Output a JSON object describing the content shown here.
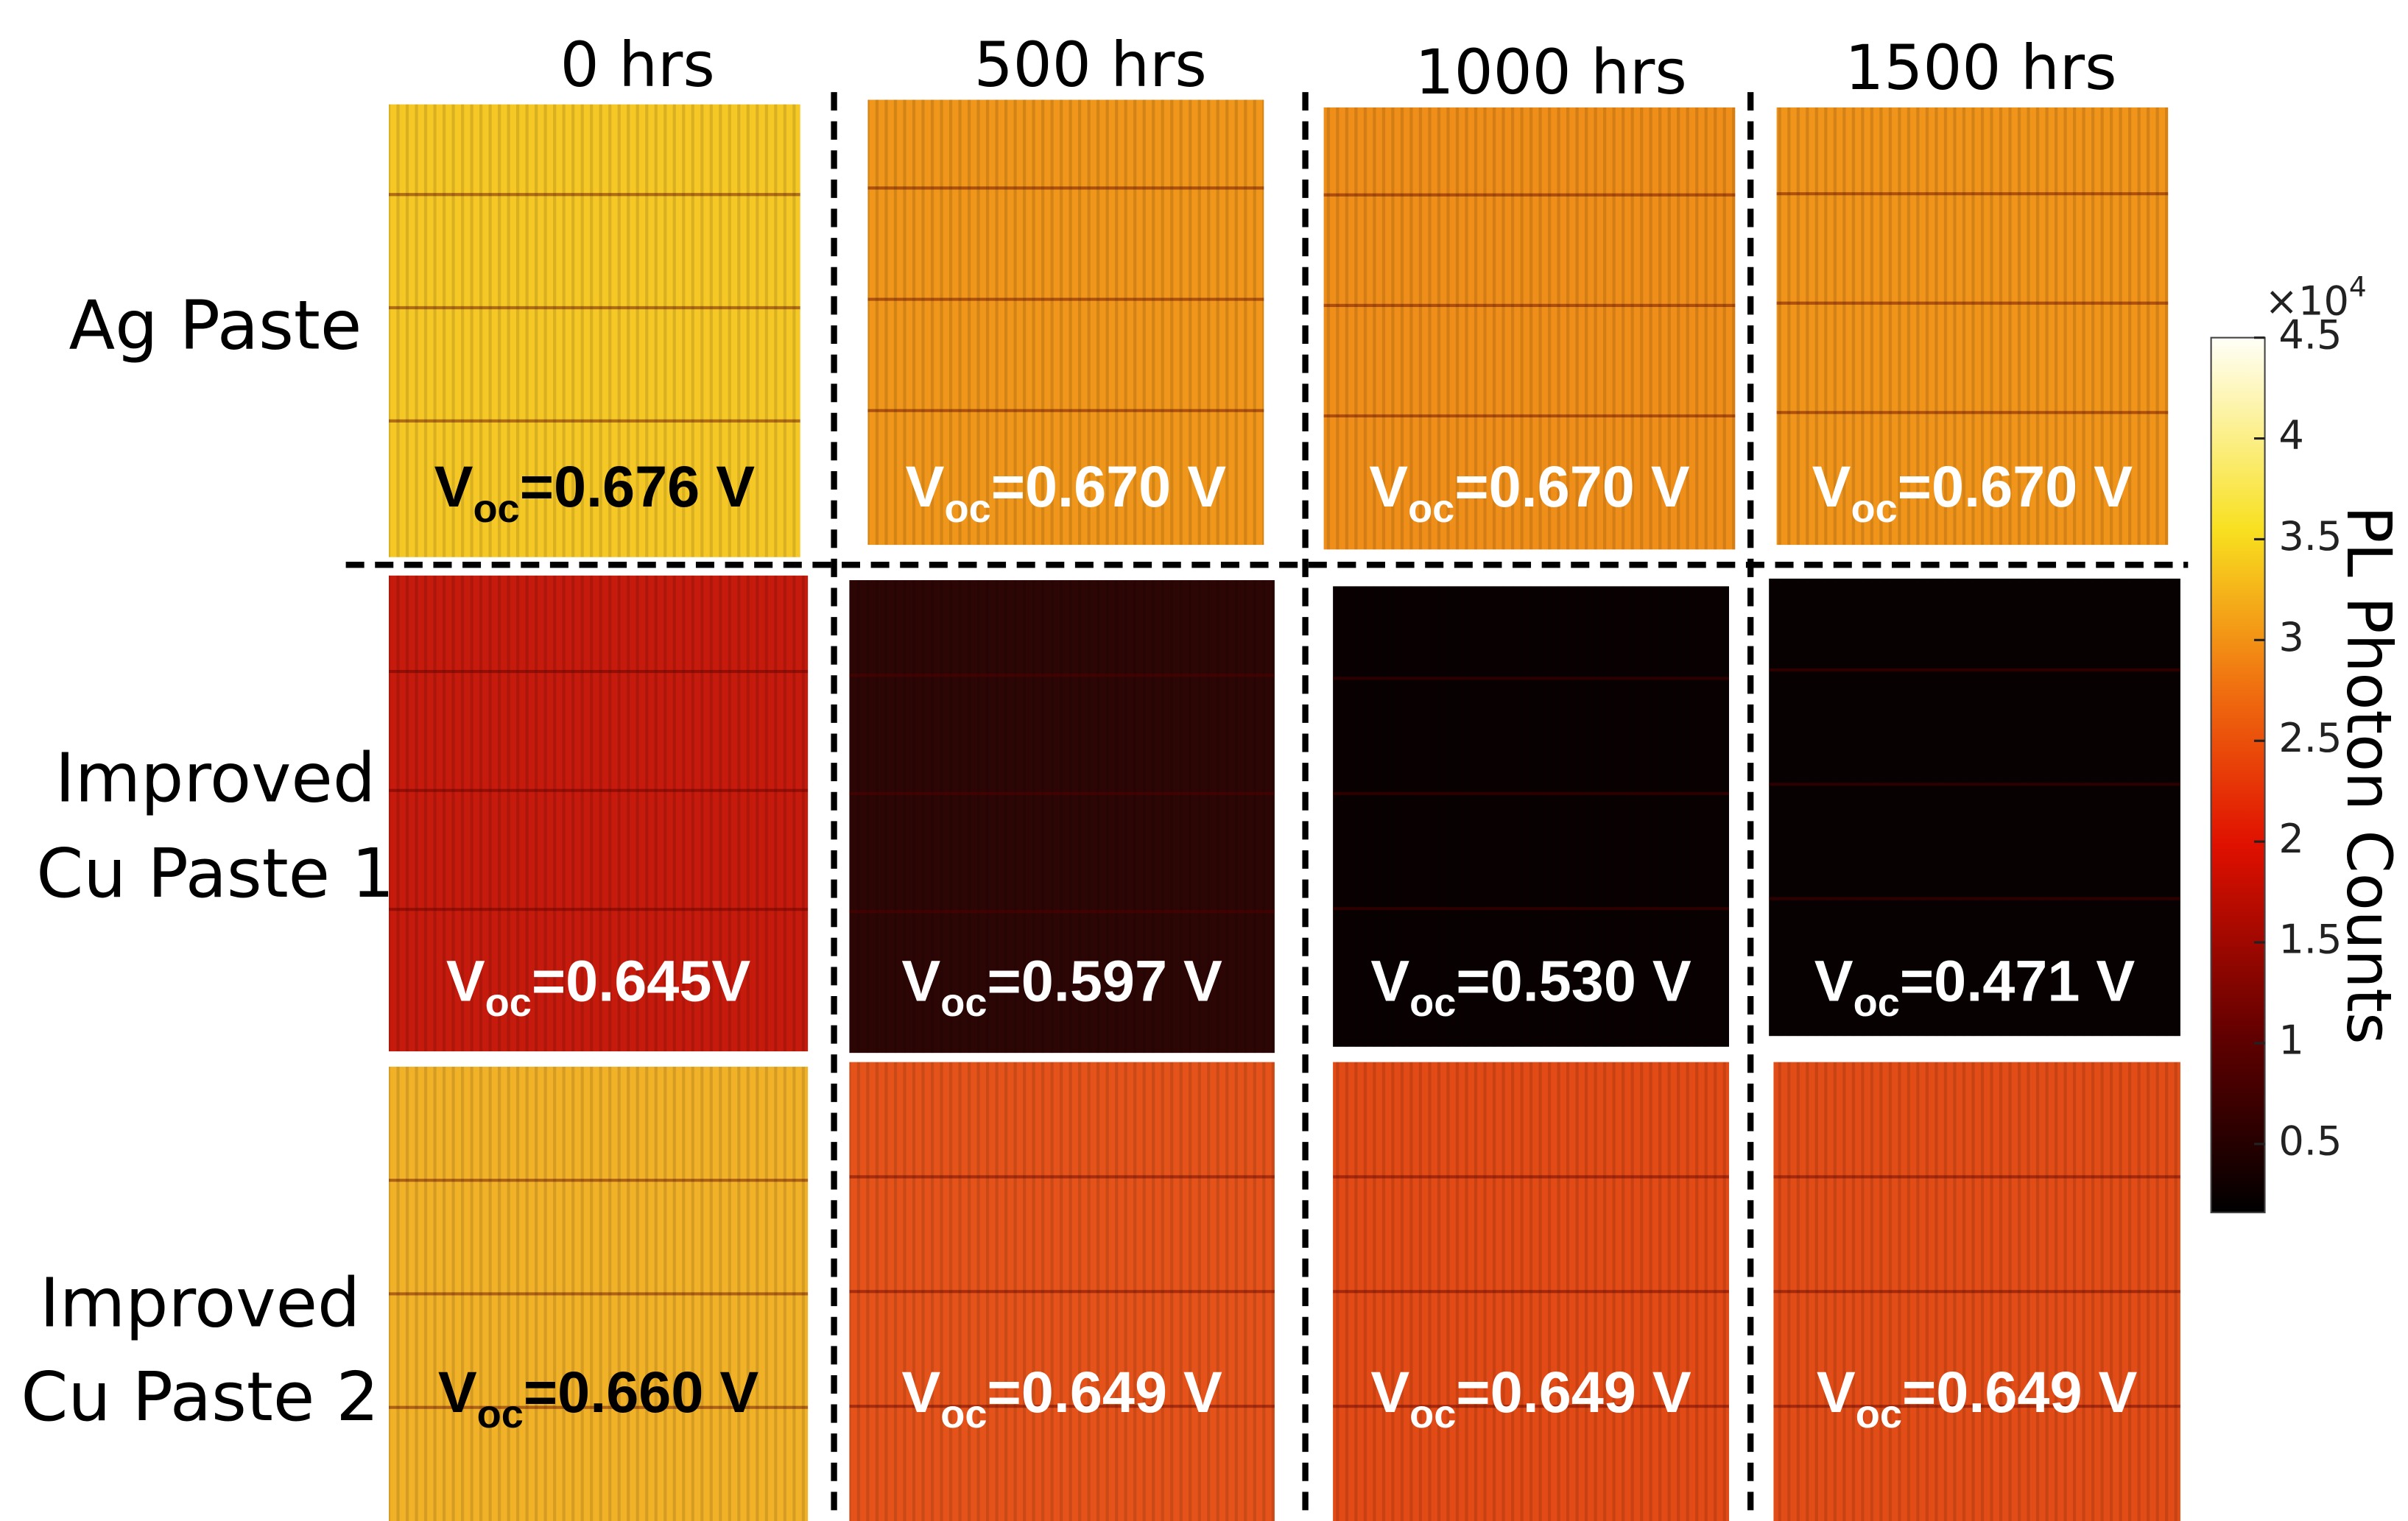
{
  "columns": [
    "0 hrs",
    "500 hrs",
    "1000 hrs",
    "1500 hrs"
  ],
  "rows": [
    {
      "label": [
        "Ag Paste"
      ],
      "cells": [
        {
          "symbol": "V",
          "subscript": "oc",
          "text": "=0.676 V"
        },
        {
          "symbol": "V",
          "subscript": "oc",
          "text": "=0.670 V"
        },
        {
          "symbol": "V",
          "subscript": "oc",
          "text": "=0.670 V"
        },
        {
          "symbol": "V",
          "subscript": "oc",
          "text": "=0.670 V"
        }
      ]
    },
    {
      "label": [
        "Improved",
        "Cu Paste 1"
      ],
      "cells": [
        {
          "symbol": "V",
          "subscript": "oc",
          "text": "=0.645V"
        },
        {
          "symbol": "V",
          "subscript": "oc",
          "text": "=0.597 V"
        },
        {
          "symbol": "V",
          "subscript": "oc",
          "text": "=0.530 V"
        },
        {
          "symbol": "V",
          "subscript": "oc",
          "text": "=0.471 V"
        }
      ]
    },
    {
      "label": [
        "Improved",
        "Cu Paste 2"
      ],
      "cells": [
        {
          "symbol": "V",
          "subscript": "oc",
          "text": "=0.660 V"
        },
        {
          "symbol": "V",
          "subscript": "oc",
          "text": "=0.649 V"
        },
        {
          "symbol": "V",
          "subscript": "oc",
          "text": "=0.649 V"
        },
        {
          "symbol": "V",
          "subscript": "oc",
          "text": "=0.649 V"
        }
      ]
    }
  ],
  "colorbar": {
    "label": "PL Photon Counts",
    "multiplier": "×10",
    "exponent": "4",
    "range": [
      0.16,
      4.5
    ],
    "ticks": [
      0.5,
      1,
      1.5,
      2,
      2.5,
      3,
      3.5,
      4,
      4.5
    ]
  }
}
